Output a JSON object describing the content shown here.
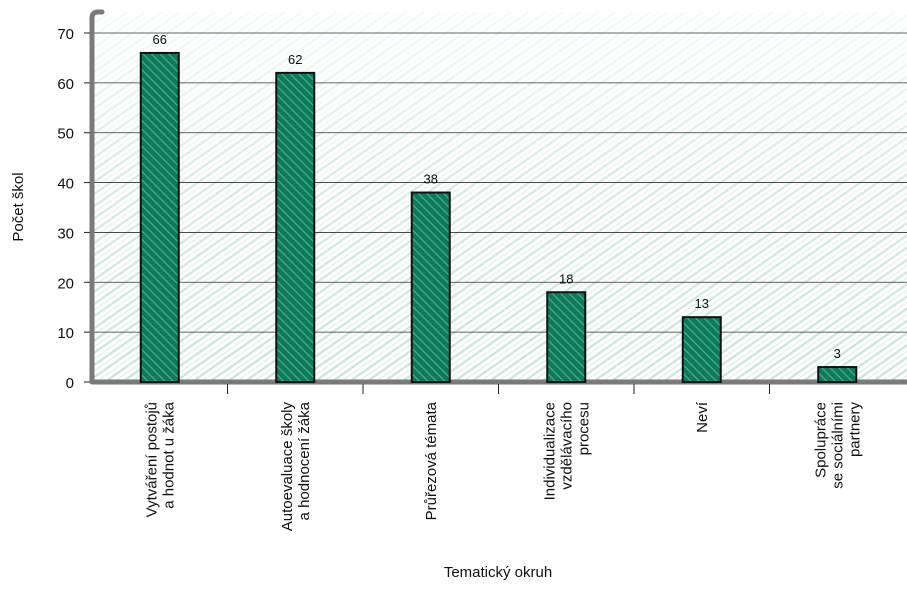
{
  "chart_data": {
    "type": "bar",
    "title": "",
    "xlabel": "Tematický okruh",
    "ylabel": "Počet škol",
    "ylim": [
      0,
      70
    ],
    "yticks": [
      0,
      10,
      20,
      30,
      40,
      50,
      60,
      70
    ],
    "grid": true,
    "categories": [
      [
        "Vytváření postojů",
        "a hodnot u žáka"
      ],
      [
        "Autoevaluace školy",
        "a hodnocení žáka"
      ],
      [
        "Průřezová témata"
      ],
      [
        "Individualizace",
        "vzdělávacího",
        "procesu"
      ],
      [
        "Neví"
      ],
      [
        "Spolupráce",
        "se sociálními",
        "partnery"
      ]
    ],
    "values": [
      66,
      62,
      38,
      18,
      13,
      3
    ],
    "data_labels": [
      "66",
      "62",
      "38",
      "18",
      "13",
      "3"
    ],
    "colors": {
      "bar": "#0e7a5c",
      "bar_hatch": "#4fb292",
      "frame": "#7a7a7a",
      "grid": "#333333",
      "background_hatch": "#b7dccd"
    }
  }
}
